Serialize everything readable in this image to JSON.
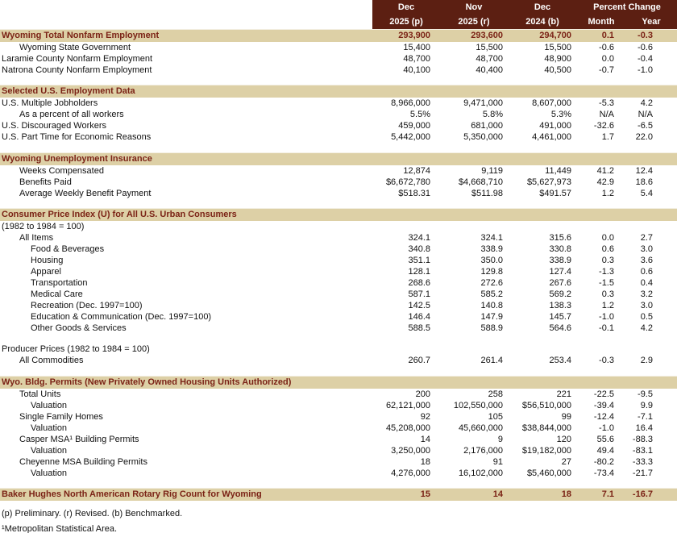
{
  "colors": {
    "header_bg": "#5c1f12",
    "band_bg": "#ddd0a6",
    "accent_text": "#7b2316"
  },
  "header": {
    "columns": [
      {
        "line1": "Dec",
        "line2": "2025 (p)"
      },
      {
        "line1": "Nov",
        "line2": "2025 (r)"
      },
      {
        "line1": "Dec",
        "line2": "2024 (b)"
      }
    ],
    "percent_change": {
      "label": "Percent Change",
      "sub": [
        "Month",
        "Year"
      ]
    }
  },
  "rows": [
    {
      "type": "highlight",
      "indent": 0,
      "label": "Wyoming Total Nonfarm Employment",
      "values": [
        "293,900",
        "293,600",
        "294,700",
        "0.1",
        "-0.3"
      ]
    },
    {
      "type": "data",
      "indent": 1,
      "label": "Wyoming State Government",
      "values": [
        "15,400",
        "15,500",
        "15,500",
        "-0.6",
        "-0.6"
      ]
    },
    {
      "type": "data",
      "indent": 0,
      "label": "Laramie County Nonfarm Employment",
      "values": [
        "48,700",
        "48,700",
        "48,900",
        "0.0",
        "-0.4"
      ]
    },
    {
      "type": "data",
      "indent": 0,
      "label": "Natrona County Nonfarm Employment",
      "values": [
        "40,100",
        "40,400",
        "40,500",
        "-0.7",
        "-1.0"
      ]
    },
    {
      "type": "spacer"
    },
    {
      "type": "section",
      "indent": 0,
      "label": "Selected U.S. Employment Data"
    },
    {
      "type": "data",
      "indent": 0,
      "label": "U.S. Multiple Jobholders",
      "values": [
        "8,966,000",
        "9,471,000",
        "8,607,000",
        "-5.3",
        "4.2"
      ]
    },
    {
      "type": "data",
      "indent": 1,
      "label": "As a percent of all workers",
      "values": [
        "5.5%",
        "5.8%",
        "5.3%",
        "N/A",
        "N/A"
      ]
    },
    {
      "type": "data",
      "indent": 0,
      "label": "U.S. Discouraged Workers",
      "values": [
        "459,000",
        "681,000",
        "491,000",
        "-32.6",
        "-6.5"
      ]
    },
    {
      "type": "data",
      "indent": 0,
      "label": "U.S. Part Time for Economic Reasons",
      "values": [
        "5,442,000",
        "5,350,000",
        "4,461,000",
        "1.7",
        "22.0"
      ]
    },
    {
      "type": "spacer"
    },
    {
      "type": "section",
      "indent": 0,
      "label": "Wyoming Unemployment Insurance"
    },
    {
      "type": "data",
      "indent": 1,
      "label": "Weeks Compensated",
      "values": [
        "12,874",
        "9,119",
        "11,449",
        "41.2",
        "12.4"
      ]
    },
    {
      "type": "data",
      "indent": 1,
      "label": "Benefits Paid",
      "values": [
        "$6,672,780",
        "$4,668,710",
        "$5,627,973",
        "42.9",
        "18.6"
      ]
    },
    {
      "type": "data",
      "indent": 1,
      "label": "Average Weekly Benefit Payment",
      "values": [
        "$518.31",
        "$511.98",
        "$491.57",
        "1.2",
        "5.4"
      ]
    },
    {
      "type": "spacer"
    },
    {
      "type": "section",
      "indent": 0,
      "label": "Consumer Price Index (U) for All U.S. Urban Consumers"
    },
    {
      "type": "plain",
      "indent": 0,
      "label": "(1982 to 1984 = 100)"
    },
    {
      "type": "data",
      "indent": 1,
      "label": "All Items",
      "values": [
        "324.1",
        "324.1",
        "315.6",
        "0.0",
        "2.7"
      ]
    },
    {
      "type": "data",
      "indent": 2,
      "label": "Food & Beverages",
      "values": [
        "340.8",
        "338.9",
        "330.8",
        "0.6",
        "3.0"
      ]
    },
    {
      "type": "data",
      "indent": 2,
      "label": "Housing",
      "values": [
        "351.1",
        "350.0",
        "338.9",
        "0.3",
        "3.6"
      ]
    },
    {
      "type": "data",
      "indent": 2,
      "label": "Apparel",
      "values": [
        "128.1",
        "129.8",
        "127.4",
        "-1.3",
        "0.6"
      ]
    },
    {
      "type": "data",
      "indent": 2,
      "label": "Transportation",
      "values": [
        "268.6",
        "272.6",
        "267.6",
        "-1.5",
        "0.4"
      ]
    },
    {
      "type": "data",
      "indent": 2,
      "label": "Medical Care",
      "values": [
        "587.1",
        "585.2",
        "569.2",
        "0.3",
        "3.2"
      ]
    },
    {
      "type": "data",
      "indent": 2,
      "label": "Recreation (Dec. 1997=100)",
      "values": [
        "142.5",
        "140.8",
        "138.3",
        "1.2",
        "3.0"
      ]
    },
    {
      "type": "data",
      "indent": 2,
      "label": "Education & Communication (Dec. 1997=100)",
      "values": [
        "146.4",
        "147.9",
        "145.7",
        "-1.0",
        "0.5"
      ]
    },
    {
      "type": "data",
      "indent": 2,
      "label": "Other Goods & Services",
      "values": [
        "588.5",
        "588.9",
        "564.6",
        "-0.1",
        "4.2"
      ]
    },
    {
      "type": "spacer"
    },
    {
      "type": "plain",
      "indent": 0,
      "label": "Producer Prices (1982 to 1984 = 100)"
    },
    {
      "type": "data",
      "indent": 1,
      "label": "All Commodities",
      "values": [
        "260.7",
        "261.4",
        "253.4",
        "-0.3",
        "2.9"
      ]
    },
    {
      "type": "spacer"
    },
    {
      "type": "section",
      "indent": 0,
      "label": "Wyo. Bldg. Permits (New Privately Owned Housing Units Authorized)"
    },
    {
      "type": "data",
      "indent": 1,
      "label": "Total Units",
      "values": [
        "200",
        "258",
        "221",
        "-22.5",
        "-9.5"
      ]
    },
    {
      "type": "data",
      "indent": 2,
      "label": "Valuation",
      "values": [
        "62,121,000",
        "102,550,000",
        "$56,510,000",
        "-39.4",
        "9.9"
      ]
    },
    {
      "type": "data",
      "indent": 1,
      "label": "Single Family Homes",
      "values": [
        "92",
        "105",
        "99",
        "-12.4",
        "-7.1"
      ]
    },
    {
      "type": "data",
      "indent": 2,
      "label": "Valuation",
      "values": [
        "45,208,000",
        "45,660,000",
        "$38,844,000",
        "-1.0",
        "16.4"
      ]
    },
    {
      "type": "data",
      "indent": 1,
      "label": "Casper MSA¹ Building Permits",
      "values": [
        "14",
        "9",
        "120",
        "55.6",
        "-88.3"
      ]
    },
    {
      "type": "data",
      "indent": 2,
      "label": "Valuation",
      "values": [
        "3,250,000",
        "2,176,000",
        "$19,182,000",
        "49.4",
        "-83.1"
      ]
    },
    {
      "type": "data",
      "indent": 1,
      "label": "Cheyenne MSA Building Permits",
      "values": [
        "18",
        "91",
        "27",
        "-80.2",
        "-33.3"
      ]
    },
    {
      "type": "data",
      "indent": 2,
      "label": "Valuation",
      "values": [
        "4,276,000",
        "16,102,000",
        "$5,460,000",
        "-73.4",
        "-21.7"
      ]
    },
    {
      "type": "spacer"
    },
    {
      "type": "highlight",
      "indent": 0,
      "label": "Baker Hughes North American Rotary Rig Count for Wyoming",
      "values": [
        "15",
        "14",
        "18",
        "7.1",
        "-16.7"
      ]
    }
  ],
  "footnotes": [
    "(p) Preliminary. (r) Revised. (b) Benchmarked.",
    "¹Metropolitan Statistical Area."
  ]
}
